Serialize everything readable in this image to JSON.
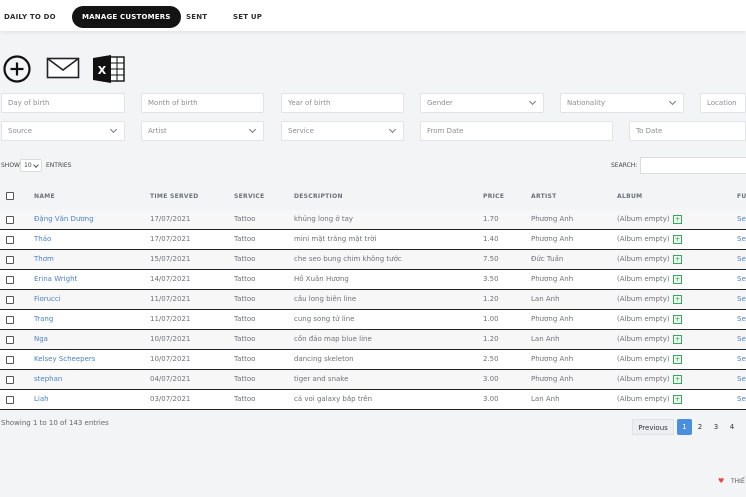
{
  "nav": {
    "items": [
      {
        "label": "DAILY TO DO"
      },
      {
        "label": "MANAGE CUSTOMERS"
      },
      {
        "label": "SENT"
      },
      {
        "label": "SET UP"
      }
    ]
  },
  "filters": {
    "row1": [
      "Day of birth",
      "Month of birth",
      "Year of birth",
      "Gender",
      "Nationality",
      "Location"
    ],
    "row2": [
      "Source",
      "Artist",
      "Service",
      "From Date",
      "To Date"
    ]
  },
  "table_controls": {
    "show_label": "SHOW",
    "entries_value": "10",
    "entries_label": "ENTRIES",
    "search_label": "SEARCH:"
  },
  "columns": [
    "NAME",
    "TIME SERVED",
    "SERVICE",
    "DESCRIPTION",
    "PRICE",
    "ARTIST",
    "ALBUM",
    "FU"
  ],
  "rows": [
    {
      "name": "Đặng Văn Dương",
      "time": "17/07/2021",
      "service": "Tattoo",
      "description": "khủng long ở tay",
      "price": "1.70",
      "artist": "Phương Anh",
      "album": "(Album empty)",
      "fu": "Se"
    },
    {
      "name": "Thảo",
      "time": "17/07/2021",
      "service": "Tattoo",
      "description": "mini mặt trăng mặt trời",
      "price": "1.40",
      "artist": "Phương Anh",
      "album": "(Album empty)",
      "fu": "Se"
    },
    {
      "name": "Thơm",
      "time": "15/07/2021",
      "service": "Tattoo",
      "description": "che seo bung chim không tước",
      "price": "7.50",
      "artist": "Đức Tuấn",
      "album": "(Album empty)",
      "fu": "Se"
    },
    {
      "name": "Erina Wright",
      "time": "14/07/2021",
      "service": "Tattoo",
      "description": "Hồ Xuân Hương",
      "price": "3.50",
      "artist": "Phương Anh",
      "album": "(Album empty)",
      "fu": "Se"
    },
    {
      "name": "Fiorucci",
      "time": "11/07/2021",
      "service": "Tattoo",
      "description": "cầu long biên line",
      "price": "1.20",
      "artist": "Lan Anh",
      "album": "(Album empty)",
      "fu": "Se"
    },
    {
      "name": "Trang",
      "time": "11/07/2021",
      "service": "Tattoo",
      "description": "\u0007cung song tử line",
      "price": "1.00",
      "artist": "Phương Anh",
      "album": "(Album empty)",
      "fu": "Se"
    },
    {
      "name": "Nga",
      "time": "10/07/2021",
      "service": "Tattoo",
      "description": "cồn đảo map blue line",
      "price": "1.20",
      "artist": "Lan Anh",
      "album": "(Album empty)",
      "fu": "Se"
    },
    {
      "name": "Kelsey Scheepers",
      "time": "10/07/2021",
      "service": "Tattoo",
      "description": "dancing skeleton",
      "price": "2.50",
      "artist": "Phương Anh",
      "album": "(Album empty)",
      "fu": "Se"
    },
    {
      "name": "stephan",
      "time": "04/07/2021",
      "service": "Tattoo",
      "description": "tiger and snake",
      "price": "3.00",
      "artist": "Phương Anh",
      "album": "(Album empty)",
      "fu": "Se"
    },
    {
      "name": "Liah",
      "time": "03/07/2021",
      "service": "Tattoo",
      "description": "cá voi galaxy \u0007bắp trên",
      "price": "3.00",
      "artist": "Lan Anh",
      "album": "(Album empty)",
      "fu": "Se"
    }
  ],
  "footer": {
    "showing": "Showing 1 to 10 of 143 entries",
    "previous": "Previous",
    "pages": [
      "1",
      "2",
      "3",
      "4"
    ],
    "current_page": "1",
    "bottom_right": "THIẾ"
  },
  "colors": {
    "accent": "#4b82c5",
    "nav_active_bg": "#141414",
    "album_icon": "#3ba55c",
    "heart": "#e34c4c"
  },
  "icons": [
    "add-circle-icon",
    "envelope-icon",
    "excel-icon",
    "chevron-down-icon",
    "album-add-icon",
    "heart-icon"
  ]
}
